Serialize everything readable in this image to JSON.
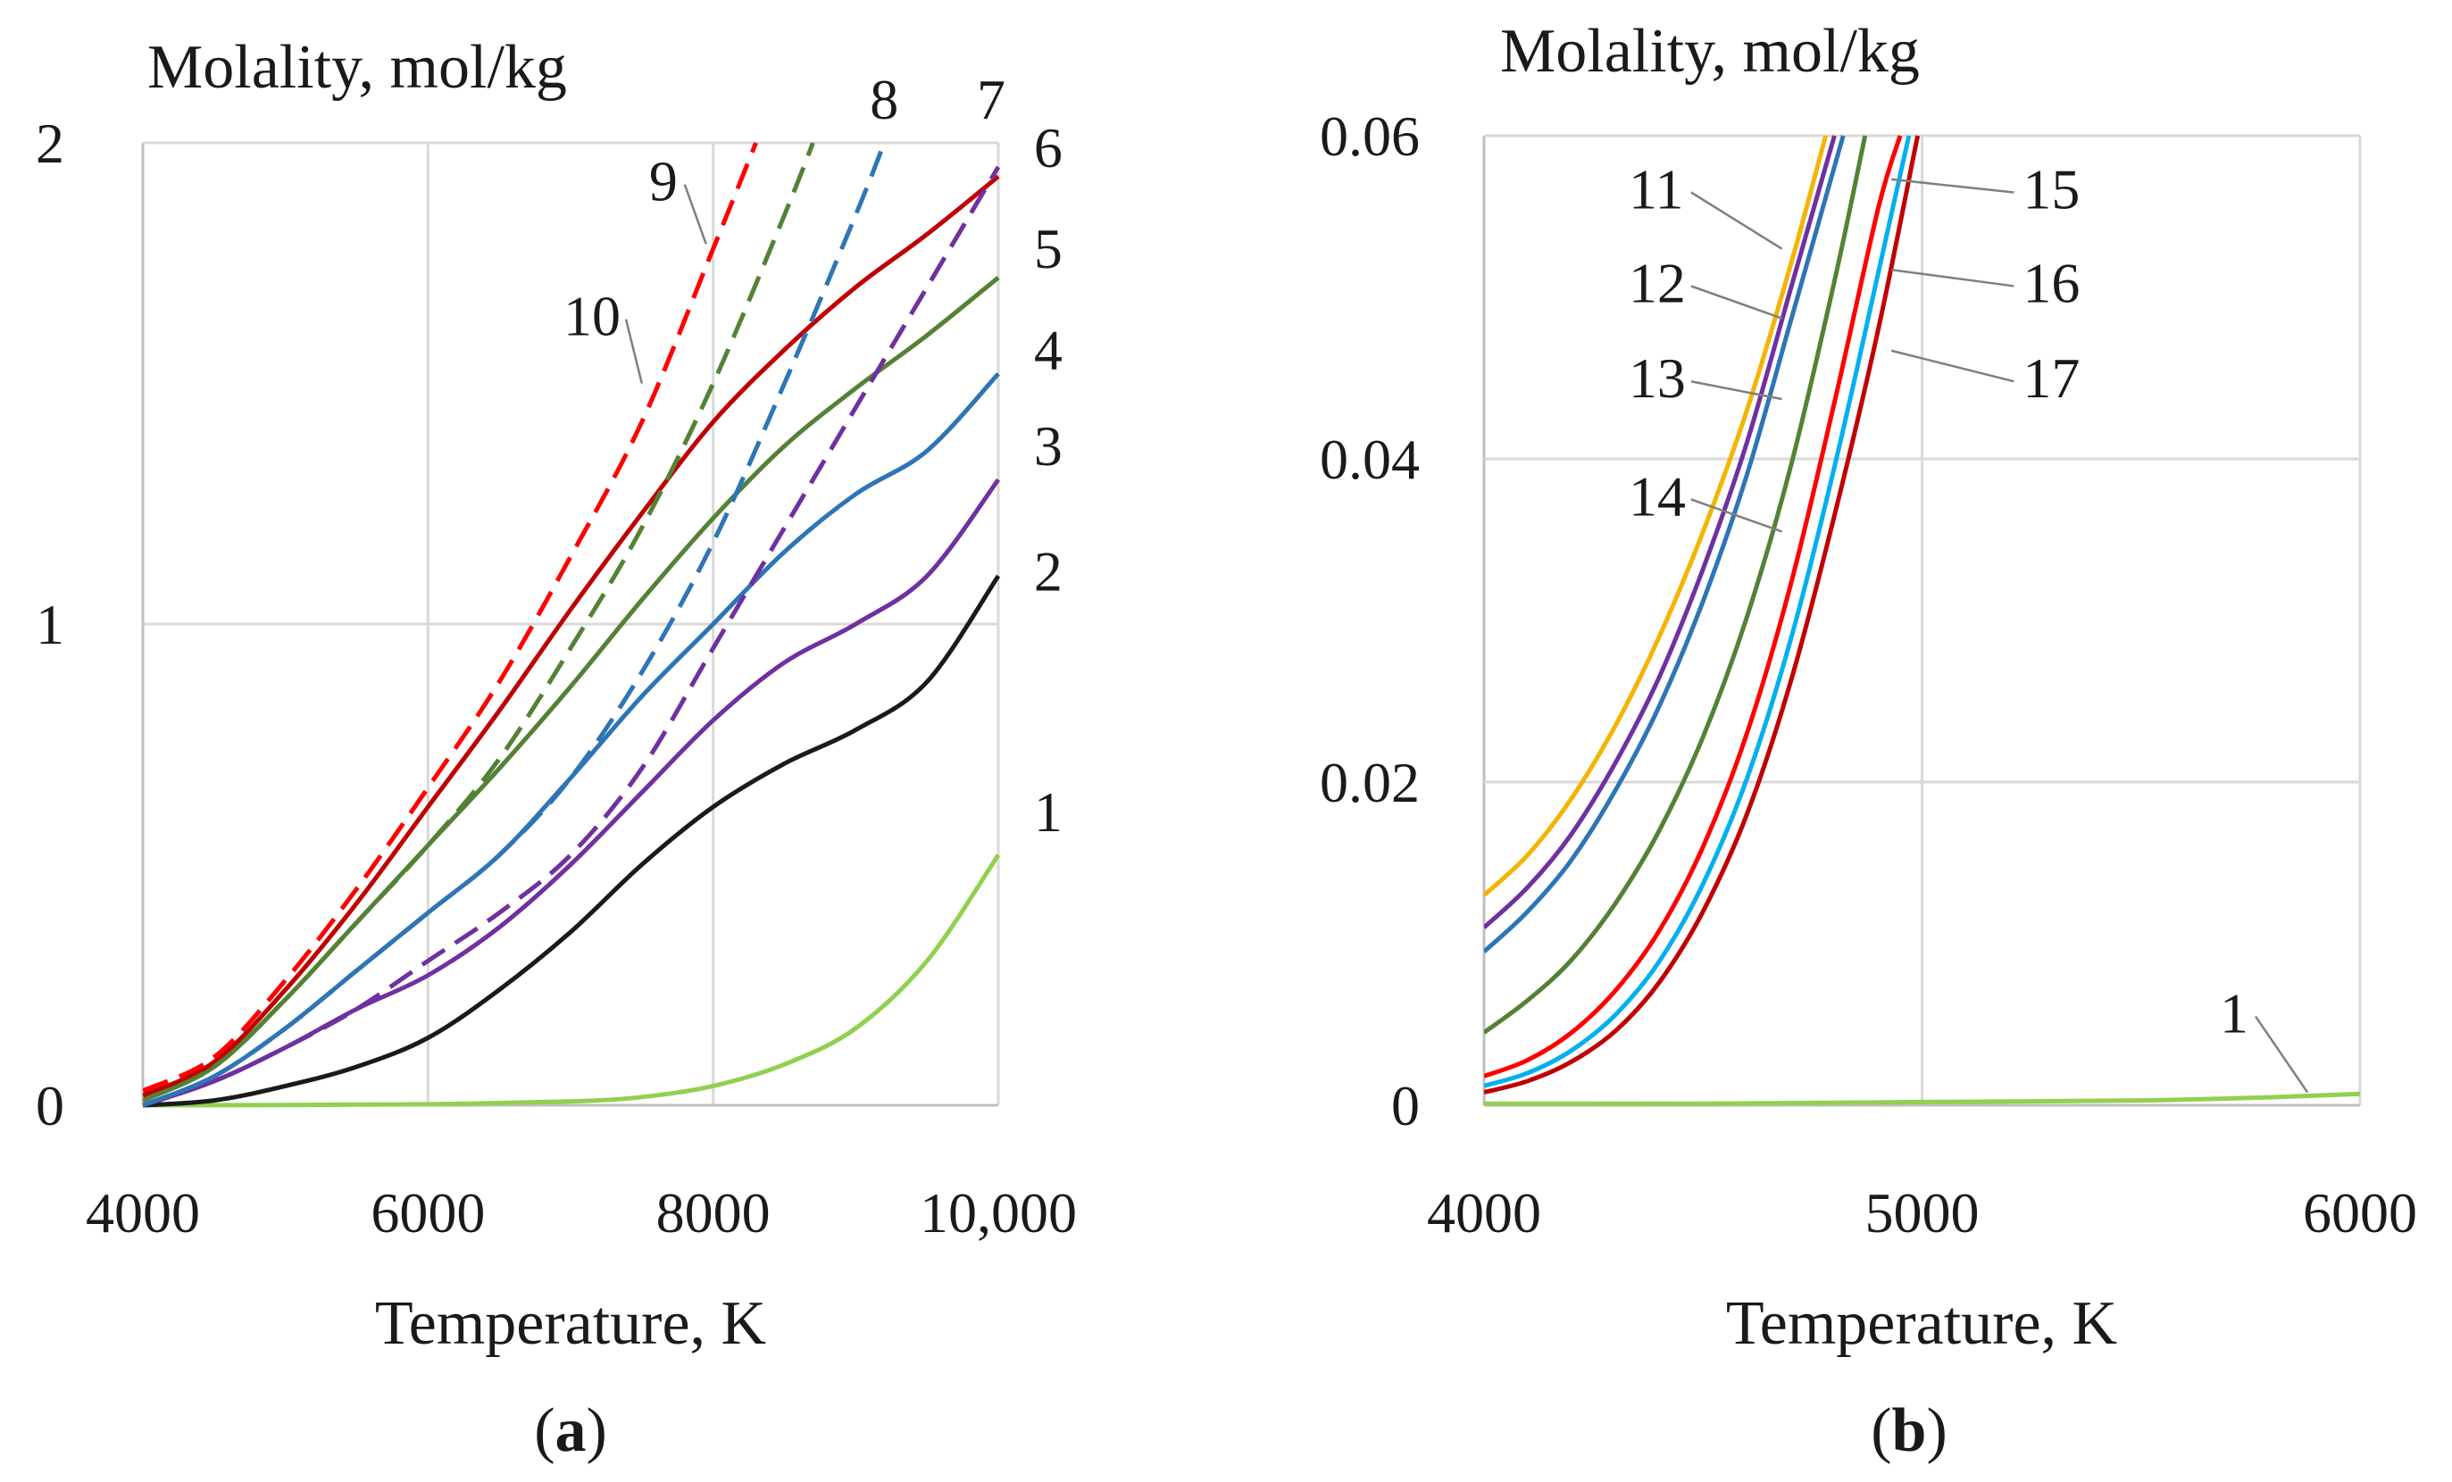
{
  "chart_data": [
    {
      "type": "line",
      "panel_label": "(a)",
      "panel_letter": "a",
      "xlabel": "Temperature, K",
      "ylabel": "Molality, mol/kg",
      "xlim": [
        4000,
        10000
      ],
      "ylim": [
        0,
        2
      ],
      "xticks": [
        4000,
        6000,
        8000,
        10000
      ],
      "xtick_labels": [
        "4000",
        "6000",
        "8000",
        "10,000"
      ],
      "yticks": [
        0,
        1,
        2
      ],
      "ytick_labels": [
        "0",
        "1",
        "2"
      ],
      "grid": true,
      "series": [
        {
          "label": "1",
          "color": "#92d050",
          "dash": false,
          "x": [
            4000,
            5000,
            6000,
            7000,
            7500,
            8000,
            8500,
            9000,
            9500,
            10000
          ],
          "y": [
            0,
            0.0005,
            0.002,
            0.008,
            0.017,
            0.04,
            0.085,
            0.16,
            0.3,
            0.52
          ]
        },
        {
          "label": "2",
          "color": "#1a1a1a",
          "dash": false,
          "x": [
            4000,
            4500,
            5000,
            5500,
            6000,
            6500,
            7000,
            7500,
            8000,
            8500,
            9000,
            9500,
            10000
          ],
          "y": [
            0,
            0.01,
            0.04,
            0.08,
            0.14,
            0.24,
            0.36,
            0.5,
            0.62,
            0.71,
            0.78,
            0.88,
            1.1
          ]
        },
        {
          "label": "3",
          "color": "#7030a0",
          "dash": false,
          "x": [
            4000,
            4500,
            5000,
            5500,
            6000,
            6500,
            7000,
            7500,
            8000,
            8500,
            9000,
            9500,
            10000
          ],
          "y": [
            0,
            0.05,
            0.12,
            0.2,
            0.27,
            0.37,
            0.5,
            0.65,
            0.8,
            0.92,
            1.0,
            1.1,
            1.3
          ]
        },
        {
          "label": "4",
          "color": "#2e75b6",
          "dash": false,
          "x": [
            4000,
            4500,
            5000,
            5500,
            6000,
            6500,
            7000,
            7500,
            8000,
            8500,
            9000,
            9500,
            10000
          ],
          "y": [
            0,
            0.06,
            0.16,
            0.28,
            0.4,
            0.52,
            0.68,
            0.85,
            1.0,
            1.15,
            1.27,
            1.36,
            1.52
          ]
        },
        {
          "label": "5",
          "color": "#548235",
          "dash": false,
          "x": [
            4000,
            4500,
            5000,
            5500,
            6000,
            6500,
            7000,
            7500,
            8000,
            8500,
            9000,
            9500,
            10000
          ],
          "y": [
            0.01,
            0.08,
            0.22,
            0.38,
            0.54,
            0.7,
            0.87,
            1.05,
            1.22,
            1.37,
            1.49,
            1.6,
            1.72
          ]
        },
        {
          "label": "6",
          "color": "#c00000",
          "dash": false,
          "x": [
            4000,
            4500,
            5000,
            5500,
            6000,
            6500,
            7000,
            7500,
            8000,
            8500,
            9000,
            9500,
            10000
          ],
          "y": [
            0.02,
            0.09,
            0.24,
            0.42,
            0.62,
            0.82,
            1.03,
            1.23,
            1.42,
            1.57,
            1.7,
            1.81,
            1.93
          ]
        },
        {
          "label": "7",
          "color": "#7030a0",
          "dash": true,
          "x": [
            4000,
            4500,
            5000,
            5500,
            6000,
            6500,
            7000,
            7500,
            8000,
            8500,
            9000,
            9500,
            10000
          ],
          "y": [
            0,
            0.05,
            0.12,
            0.2,
            0.3,
            0.4,
            0.52,
            0.7,
            0.95,
            1.2,
            1.45,
            1.7,
            1.95
          ]
        },
        {
          "label": "8",
          "color": "#2e75b6",
          "dash": true,
          "x": [
            4000,
            4500,
            5000,
            5500,
            6000,
            6500,
            7000,
            7500,
            8000,
            8500,
            9000,
            9200
          ],
          "y": [
            0,
            0.06,
            0.16,
            0.28,
            0.4,
            0.52,
            0.68,
            0.9,
            1.17,
            1.5,
            1.85,
            2.0
          ]
        },
        {
          "label": "9",
          "color": "#548235",
          "dash": true,
          "x": [
            4000,
            4500,
            5000,
            5500,
            6000,
            6500,
            7000,
            7500,
            8000,
            8500,
            8700
          ],
          "y": [
            0.01,
            0.08,
            0.22,
            0.38,
            0.54,
            0.72,
            0.95,
            1.2,
            1.5,
            1.85,
            2.0
          ]
        },
        {
          "label": "10",
          "color": "#ff0000",
          "dash": true,
          "x": [
            4000,
            4500,
            5000,
            5500,
            6000,
            6500,
            7000,
            7500,
            8000,
            8300
          ],
          "y": [
            0.03,
            0.1,
            0.26,
            0.45,
            0.66,
            0.88,
            1.14,
            1.42,
            1.78,
            2.0
          ]
        }
      ],
      "annotations": [
        {
          "text": "1",
          "x": 10250,
          "y": 0.57
        },
        {
          "text": "2",
          "x": 10250,
          "y": 1.07
        },
        {
          "text": "3",
          "x": 10250,
          "y": 1.33
        },
        {
          "text": "4",
          "x": 10250,
          "y": 1.53
        },
        {
          "text": "5",
          "x": 10250,
          "y": 1.74
        },
        {
          "text": "6",
          "x": 10250,
          "y": 1.95
        },
        {
          "text": "7",
          "x": 9850,
          "y": 2.05
        },
        {
          "text": "8",
          "x": 9100,
          "y": 2.05
        },
        {
          "text": "9",
          "x": 7550,
          "y": 1.88,
          "lx": 7950,
          "ly": 1.79
        },
        {
          "text": "10",
          "x": 6950,
          "y": 1.6,
          "lx": 7500,
          "ly": 1.5
        }
      ]
    },
    {
      "type": "line",
      "panel_label": "(b)",
      "panel_letter": "b",
      "xlabel": "Temperature, K",
      "ylabel": "Molality, mol/kg",
      "xlim": [
        4000,
        6000
      ],
      "ylim": [
        0,
        0.06
      ],
      "xticks": [
        4000,
        5000,
        6000
      ],
      "xtick_labels": [
        "4000",
        "5000",
        "6000"
      ],
      "yticks": [
        0,
        0.02,
        0.04,
        0.06
      ],
      "ytick_labels": [
        "0",
        "0.02",
        "0.04",
        "0.06"
      ],
      "grid": true,
      "series": [
        {
          "label": "1",
          "color": "#92d050",
          "dash": false,
          "x": [
            4000,
            4500,
            5000,
            5500,
            5800,
            6000
          ],
          "y": [
            0.0001,
            0.0001,
            0.0002,
            0.0003,
            0.0005,
            0.0007
          ]
        },
        {
          "label": "11",
          "color": "#f4b400",
          "dash": false,
          "x": [
            4000,
            4100,
            4200,
            4300,
            4400,
            4500,
            4600,
            4700,
            4780
          ],
          "y": [
            0.013,
            0.0155,
            0.019,
            0.0235,
            0.029,
            0.0355,
            0.043,
            0.052,
            0.06
          ]
        },
        {
          "label": "12",
          "color": "#7030a0",
          "dash": false,
          "x": [
            4000,
            4100,
            4200,
            4300,
            4400,
            4500,
            4600,
            4700,
            4800
          ],
          "y": [
            0.011,
            0.0135,
            0.0168,
            0.0212,
            0.0265,
            0.0332,
            0.041,
            0.0505,
            0.06
          ]
        },
        {
          "label": "13",
          "color": "#2e75b6",
          "dash": false,
          "x": [
            4000,
            4100,
            4200,
            4300,
            4400,
            4500,
            4600,
            4700,
            4820
          ],
          "y": [
            0.0095,
            0.012,
            0.0152,
            0.0195,
            0.0247,
            0.0312,
            0.039,
            0.0485,
            0.06
          ]
        },
        {
          "label": "14",
          "color": "#548235",
          "dash": false,
          "x": [
            4000,
            4100,
            4200,
            4300,
            4400,
            4500,
            4600,
            4700,
            4800,
            4870
          ],
          "y": [
            0.0045,
            0.0065,
            0.009,
            0.0125,
            0.017,
            0.0228,
            0.0302,
            0.0395,
            0.051,
            0.06
          ]
        },
        {
          "label": "15",
          "color": "#ff0000",
          "dash": false,
          "x": [
            4000,
            4100,
            4200,
            4300,
            4400,
            4500,
            4600,
            4700,
            4800,
            4900,
            4950
          ],
          "y": [
            0.0018,
            0.0028,
            0.0045,
            0.0071,
            0.0108,
            0.016,
            0.023,
            0.0322,
            0.0435,
            0.0555,
            0.06
          ]
        },
        {
          "label": "16",
          "color": "#00b0f0",
          "dash": false,
          "x": [
            4000,
            4100,
            4200,
            4300,
            4400,
            4500,
            4600,
            4700,
            4800,
            4900,
            4970
          ],
          "y": [
            0.0012,
            0.002,
            0.0034,
            0.0056,
            0.0089,
            0.0137,
            0.0202,
            0.0288,
            0.0395,
            0.0515,
            0.06
          ]
        },
        {
          "label": "17",
          "color": "#c00000",
          "dash": false,
          "x": [
            4000,
            4100,
            4200,
            4300,
            4400,
            4500,
            4600,
            4700,
            4800,
            4900,
            4990
          ],
          "y": [
            0.0008,
            0.0015,
            0.0027,
            0.0046,
            0.0076,
            0.012,
            0.018,
            0.0262,
            0.0365,
            0.048,
            0.06
          ]
        }
      ],
      "annotations": [
        {
          "text": "11",
          "x": 4330,
          "y": 0.0555,
          "lx": 4680,
          "ly": 0.053
        },
        {
          "text": "12",
          "x": 4330,
          "y": 0.0497,
          "lx": 4680,
          "ly": 0.0487
        },
        {
          "text": "13",
          "x": 4330,
          "y": 0.0438,
          "lx": 4680,
          "ly": 0.0437
        },
        {
          "text": "14",
          "x": 4330,
          "y": 0.0365,
          "lx": 4680,
          "ly": 0.0355
        },
        {
          "text": "15",
          "x": 5230,
          "y": 0.0555,
          "lx": 4930,
          "ly": 0.0573
        },
        {
          "text": "16",
          "x": 5230,
          "y": 0.0497,
          "lx": 4930,
          "ly": 0.0517
        },
        {
          "text": "17",
          "x": 5230,
          "y": 0.0438,
          "lx": 4930,
          "ly": 0.0467
        },
        {
          "text": "1",
          "x": 5680,
          "y": 0.0045,
          "lx": 5880,
          "ly": 0.0008
        }
      ]
    }
  ]
}
